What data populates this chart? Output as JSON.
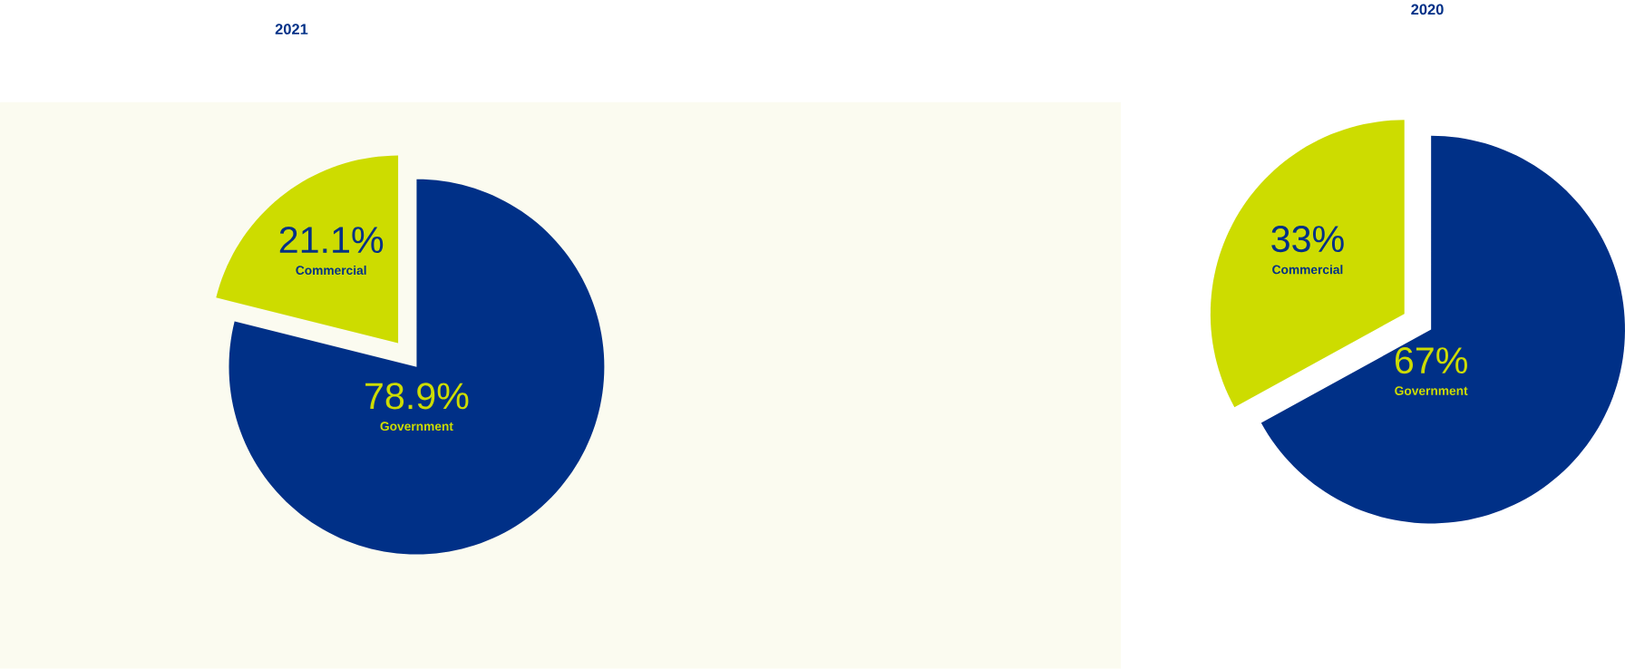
{
  "chart_data": [
    {
      "type": "pie",
      "title": "2021",
      "categories": [
        "Commercial",
        "Government"
      ],
      "values": [
        21.1,
        78.9
      ],
      "value_labels": [
        "21.1%",
        "78.9%"
      ],
      "colors": [
        "#cddc00",
        "#003087"
      ]
    },
    {
      "type": "pie",
      "title": "2020",
      "categories": [
        "Commercial",
        "Government"
      ],
      "values": [
        33,
        67
      ],
      "value_labels": [
        "33%",
        "67%"
      ],
      "colors": [
        "#cddc00",
        "#003087"
      ]
    }
  ]
}
